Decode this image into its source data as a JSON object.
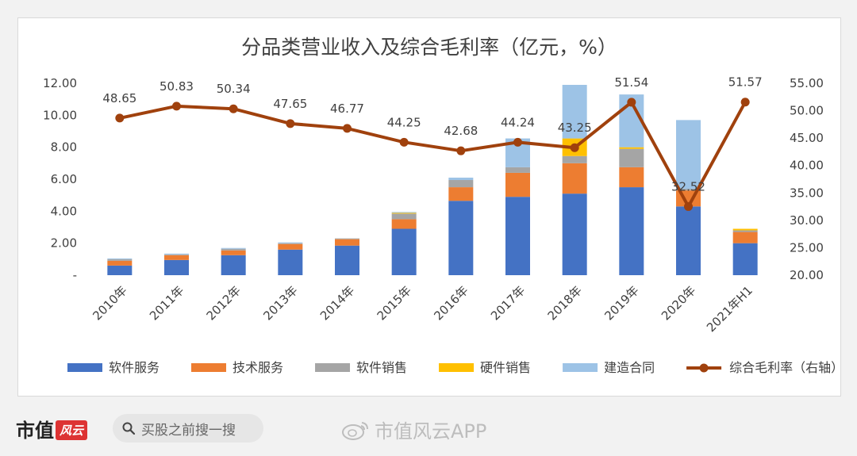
{
  "footer": {
    "brand": "市值风云",
    "search_text": "买股之前搜一搜",
    "watermark": "市值风云APP"
  },
  "chart_data": {
    "type": "bar",
    "stacked": true,
    "title": "分品类营业收入及综合毛利率（亿元，%）",
    "categories": [
      "2010年",
      "2011年",
      "2012年",
      "2013年",
      "2014年",
      "2015年",
      "2016年",
      "2017年",
      "2018年",
      "2019年",
      "2020年",
      "2021年H1"
    ],
    "series": [
      {
        "name": "软件服务",
        "type": "bar",
        "axis": "left",
        "color": "#4472c4",
        "values": [
          0.6,
          0.95,
          1.25,
          1.6,
          1.85,
          2.9,
          4.65,
          4.9,
          5.1,
          5.5,
          4.3,
          2.0
        ]
      },
      {
        "name": "技术服务",
        "type": "bar",
        "axis": "left",
        "color": "#ed7d31",
        "values": [
          0.3,
          0.3,
          0.3,
          0.35,
          0.4,
          0.6,
          0.85,
          1.5,
          1.9,
          1.25,
          1.0,
          0.7
        ]
      },
      {
        "name": "软件销售",
        "type": "bar",
        "axis": "left",
        "color": "#a5a5a5",
        "values": [
          0.1,
          0.05,
          0.1,
          0.05,
          0.05,
          0.35,
          0.45,
          0.35,
          0.45,
          1.15,
          0.1,
          0.1
        ]
      },
      {
        "name": "硬件销售",
        "type": "bar",
        "axis": "left",
        "color": "#ffc000",
        "values": [
          0.0,
          0.0,
          0.0,
          0.0,
          0.0,
          0.05,
          0.0,
          0.0,
          1.1,
          0.1,
          0.0,
          0.1
        ]
      },
      {
        "name": "建造合同",
        "type": "bar",
        "axis": "left",
        "color": "#9dc3e6",
        "values": [
          0.05,
          0.05,
          0.05,
          0.05,
          0.0,
          0.05,
          0.15,
          1.8,
          3.35,
          3.3,
          4.3,
          0.0
        ]
      },
      {
        "name": "综合毛利率（右轴）",
        "type": "line",
        "axis": "right",
        "color": "#a0410d",
        "values": [
          48.65,
          50.83,
          50.34,
          47.65,
          46.77,
          44.25,
          42.68,
          44.24,
          43.25,
          51.54,
          32.52,
          51.57
        ],
        "labels": [
          "48.65",
          "50.83",
          "50.34",
          "47.65",
          "46.77",
          "44.25",
          "42.68",
          "44.24",
          "43.25",
          "51.54",
          "32.52",
          "51.57"
        ]
      }
    ],
    "left_axis": {
      "min": 0,
      "max": 12,
      "ticks": [
        "-",
        "2.00",
        "4.00",
        "6.00",
        "8.00",
        "10.00",
        "12.00"
      ]
    },
    "right_axis": {
      "min": 20,
      "max": 55,
      "ticks": [
        "20.00",
        "25.00",
        "30.00",
        "35.00",
        "40.00",
        "45.00",
        "50.00",
        "55.00"
      ]
    },
    "legend_position": "bottom"
  }
}
